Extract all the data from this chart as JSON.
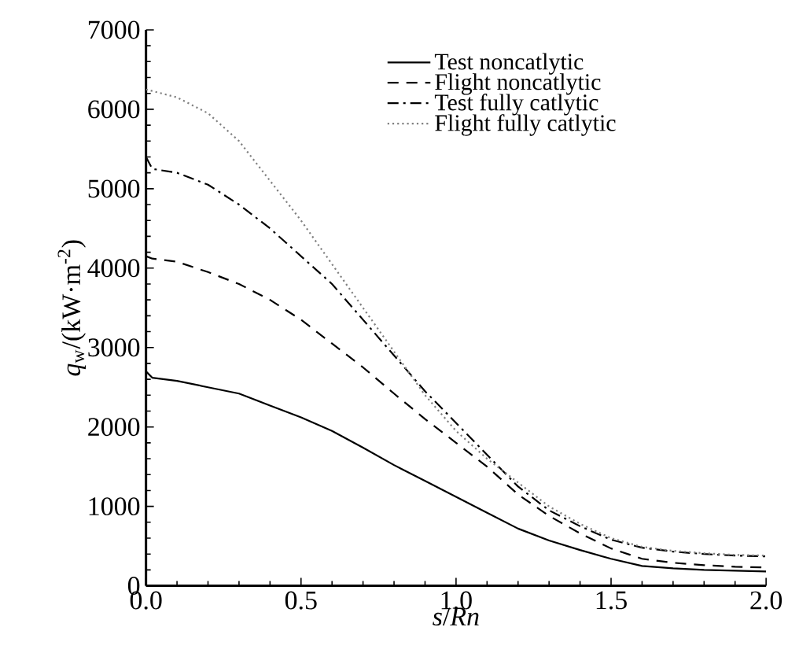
{
  "chart_data": {
    "type": "line",
    "xlabel": "*s*/*Rn*",
    "ylabel": "*q*$_{w}$/(kW·m$^{-2}$)",
    "x": [
      0,
      0.02,
      0.1,
      0.2,
      0.3,
      0.4,
      0.5,
      0.6,
      0.7,
      0.8,
      0.9,
      1.0,
      1.1,
      1.2,
      1.3,
      1.4,
      1.5,
      1.6,
      1.7,
      1.8,
      1.9,
      2.0
    ],
    "series": [
      {
        "name": "Test noncatlytic",
        "color": "#000000",
        "line_style": "solid",
        "values": [
          2700,
          2620,
          2580,
          2500,
          2420,
          2270,
          2120,
          1950,
          1740,
          1520,
          1320,
          1120,
          920,
          720,
          570,
          450,
          340,
          250,
          220,
          200,
          190,
          180
        ]
      },
      {
        "name": "Flight noncatlytic",
        "color": "#000000",
        "line_style": "dashed",
        "values": [
          4150,
          4120,
          4080,
          3950,
          3800,
          3600,
          3350,
          3050,
          2750,
          2420,
          2100,
          1800,
          1500,
          1150,
          880,
          660,
          470,
          340,
          290,
          260,
          240,
          230
        ]
      },
      {
        "name": "Test fully catlytic",
        "color": "#000000",
        "line_style": "dashdot",
        "values": [
          5400,
          5250,
          5200,
          5050,
          4800,
          4500,
          4150,
          3800,
          3350,
          2900,
          2450,
          2050,
          1650,
          1250,
          950,
          750,
          580,
          480,
          430,
          400,
          380,
          370
        ]
      },
      {
        "name": "Flight fully catlytic",
        "color": "#808080",
        "line_style": "dotted",
        "values": [
          6250,
          6230,
          6150,
          5950,
          5600,
          5100,
          4600,
          4050,
          3500,
          2950,
          2400,
          1950,
          1600,
          1300,
          1000,
          780,
          600,
          490,
          440,
          410,
          390,
          380
        ]
      }
    ],
    "xlim": [
      0,
      2.0
    ],
    "ylim": [
      0,
      7000
    ],
    "xticks": [
      {
        "value": 0,
        "label": "0.0"
      },
      0.5,
      {
        "value": 1,
        "label": "1.0"
      },
      1.5,
      {
        "value": 2,
        "label": "2.0"
      }
    ],
    "yticks": [
      0,
      1000,
      2000,
      3000,
      4000,
      5000,
      6000,
      7000
    ],
    "legend": "top right",
    "grid": false
  }
}
